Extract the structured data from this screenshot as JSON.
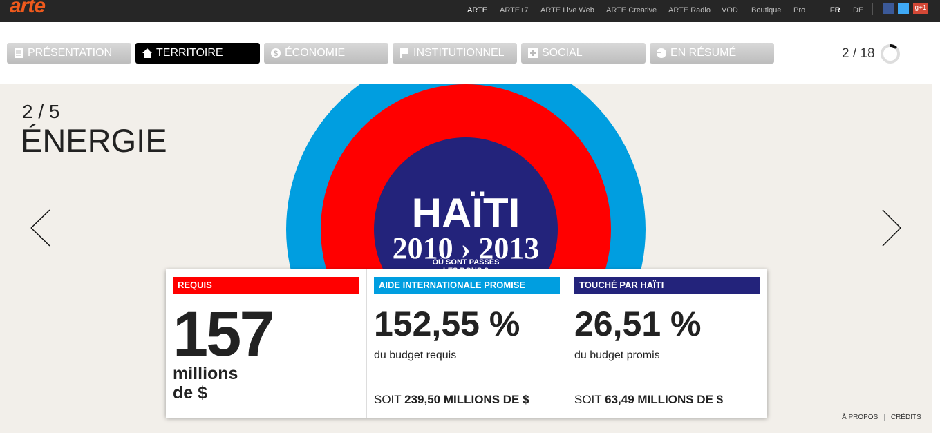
{
  "header": {
    "logo": "arte",
    "links": [
      "ARTE",
      "ARTE+7",
      "ARTE Live Web",
      "ARTE Creative",
      "ARTE Radio",
      "VOD",
      "Boutique",
      "Pro"
    ],
    "languages": [
      "FR",
      "DE"
    ],
    "social_gplus": "g+1"
  },
  "tabs": [
    "PRÉSENTATION",
    "TERRITOIRE",
    "ÉCONOMIE",
    "INSTITUTIONNEL",
    "SOCIAL",
    "EN RÉSUMÉ"
  ],
  "counter": "2 / 18",
  "section": {
    "step": "2 / 5",
    "title": "ÉNERGIE"
  },
  "emblem": {
    "title": "HAÏTI",
    "years": "2010 › 2013",
    "subtitle_1": "OÙ SONT PASSÉS",
    "subtitle_2": "LES DONS ?"
  },
  "card": {
    "columns": [
      {
        "label": "REQUIS",
        "value": "157",
        "unit_1": "millions",
        "unit_2": "de $"
      },
      {
        "label": "AIDE INTERNATIONALE PROMISE",
        "value": "152,55 %",
        "caption": "du budget requis",
        "footer_prefix": "SOIT",
        "footer_value": "239,50 MILLIONS DE $"
      },
      {
        "label": "TOUCHÉ PAR HAÏTI",
        "value": "26,51 %",
        "caption": "du budget promis",
        "footer_prefix": "SOIT",
        "footer_value": "63,49 MILLIONS DE $"
      }
    ]
  },
  "footer": {
    "links": [
      "À PROPOS",
      "CRÉDITS"
    ]
  }
}
